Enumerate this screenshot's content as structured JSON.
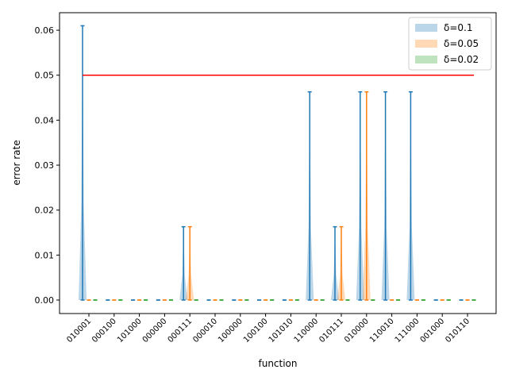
{
  "chart_data": {
    "type": "violin",
    "x_label": "function",
    "y_label": "error rate",
    "categories": [
      "010001",
      "000100",
      "101000",
      "000000",
      "000111",
      "000010",
      "100000",
      "100100",
      "101010",
      "110000",
      "010111",
      "010000",
      "110010",
      "111000",
      "001000",
      "010110"
    ],
    "series": [
      {
        "name": "δ=0.1",
        "color": "#1f77b4",
        "values": [
          0.061,
          0,
          0,
          0,
          0.0163,
          0,
          0,
          0,
          0,
          0.0463,
          0.0163,
          0.0463,
          0.0463,
          0.0463,
          0,
          0
        ]
      },
      {
        "name": "δ=0.05",
        "color": "#ff7f0e",
        "values": [
          0,
          0,
          0,
          0,
          0.0163,
          0,
          0,
          0,
          0,
          0,
          0.0163,
          0.0463,
          0,
          0,
          0,
          0
        ]
      },
      {
        "name": "δ=0.02",
        "color": "#2ca02c",
        "values": [
          0,
          0,
          0,
          0,
          0,
          0,
          0,
          0,
          0,
          0,
          0,
          0,
          0,
          0,
          0,
          0
        ]
      }
    ],
    "threshold": 0.05,
    "threshold_color": "#ff0000",
    "ylim": [
      -0.003,
      0.0639
    ],
    "yticks": [
      {
        "value": 0,
        "label": "0.00"
      },
      {
        "value": 0.01,
        "label": "0.01"
      },
      {
        "value": 0.02,
        "label": "0.02"
      },
      {
        "value": 0.03,
        "label": "0.03"
      },
      {
        "value": 0.04,
        "label": "0.04"
      },
      {
        "value": 0.05,
        "label": "0.05"
      },
      {
        "value": 0.06,
        "label": "0.06"
      }
    ],
    "legend": "upper right"
  }
}
